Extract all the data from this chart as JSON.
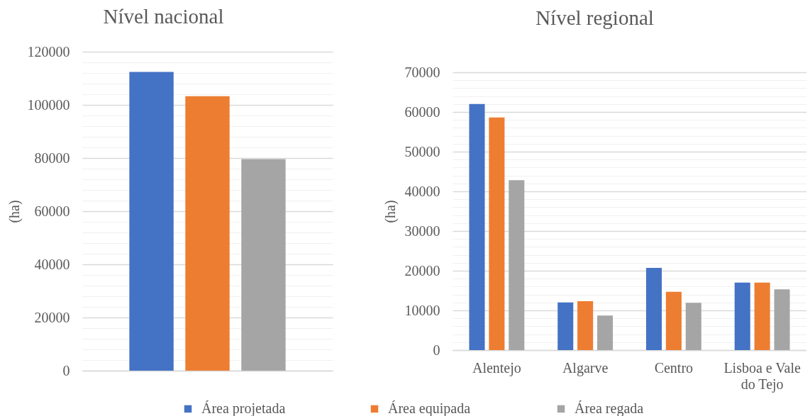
{
  "chart_data": [
    {
      "type": "bar",
      "title": "Nível nacional",
      "ylabel": "(ha)",
      "categories": [
        null
      ],
      "series": [
        {
          "name": "Área projetada",
          "color": "#4472c4",
          "values": [
            112400
          ]
        },
        {
          "name": "Área equipada",
          "color": "#ed7d31",
          "values": [
            103300
          ]
        },
        {
          "name": "Área regada",
          "color": "#a5a5a5",
          "values": [
            79600
          ]
        }
      ],
      "ylim": [
        0,
        120000
      ],
      "yticks": [
        0,
        {
          "value": 4000,
          "label": null
        },
        {
          "value": 8000,
          "label": null
        },
        {
          "value": 12000,
          "label": null
        },
        {
          "value": 16000,
          "label": null
        },
        20000,
        {
          "value": 24000,
          "label": null
        },
        {
          "value": 28000,
          "label": null
        },
        {
          "value": 32000,
          "label": null
        },
        {
          "value": 36000,
          "label": null
        },
        40000,
        {
          "value": 44000,
          "label": null
        },
        {
          "value": 48000,
          "label": null
        },
        {
          "value": 52000,
          "label": null
        },
        {
          "value": 56000,
          "label": null
        },
        60000,
        {
          "value": 64000,
          "label": null
        },
        {
          "value": 68000,
          "label": null
        },
        {
          "value": 72000,
          "label": null
        },
        {
          "value": 76000,
          "label": null
        },
        80000,
        {
          "value": 84000,
          "label": null
        },
        {
          "value": 88000,
          "label": null
        },
        {
          "value": 92000,
          "label": null
        },
        {
          "value": 96000,
          "label": null
        },
        100000,
        {
          "value": 104000,
          "label": null
        },
        {
          "value": 108000,
          "label": null
        },
        {
          "value": 112000,
          "label": null
        },
        {
          "value": 116000,
          "label": null
        },
        120000
      ],
      "grid": "y",
      "legend": "bottom"
    },
    {
      "type": "bar",
      "title": "Nível regional",
      "ylabel": "(ha)",
      "categories": [
        "Alentejo",
        "Algarve",
        "Centro",
        "Lisboa e Vale do Tejo"
      ],
      "series": [
        {
          "name": "Área projetada",
          "color": "#4472c4",
          "values": [
            62000,
            12000,
            20700,
            17000
          ]
        },
        {
          "name": "Área equipada",
          "color": "#ed7d31",
          "values": [
            58600,
            12300,
            14700,
            17000
          ]
        },
        {
          "name": "Área regada",
          "color": "#a5a5a5",
          "values": [
            42800,
            8700,
            11900,
            15300
          ]
        }
      ],
      "ylim": [
        0,
        70000
      ],
      "yticks": [
        0,
        {
          "value": 2000,
          "label": null
        },
        {
          "value": 4000,
          "label": null
        },
        {
          "value": 6000,
          "label": null
        },
        {
          "value": 8000,
          "label": null
        },
        10000,
        {
          "value": 12000,
          "label": null
        },
        {
          "value": 14000,
          "label": null
        },
        {
          "value": 16000,
          "label": null
        },
        {
          "value": 18000,
          "label": null
        },
        20000,
        {
          "value": 22000,
          "label": null
        },
        {
          "value": 24000,
          "label": null
        },
        {
          "value": 26000,
          "label": null
        },
        {
          "value": 28000,
          "label": null
        },
        30000,
        {
          "value": 32000,
          "label": null
        },
        {
          "value": 34000,
          "label": null
        },
        {
          "value": 36000,
          "label": null
        },
        {
          "value": 38000,
          "label": null
        },
        40000,
        {
          "value": 42000,
          "label": null
        },
        {
          "value": 44000,
          "label": null
        },
        {
          "value": 46000,
          "label": null
        },
        {
          "value": 48000,
          "label": null
        },
        50000,
        {
          "value": 52000,
          "label": null
        },
        {
          "value": 54000,
          "label": null
        },
        {
          "value": 56000,
          "label": null
        },
        {
          "value": 58000,
          "label": null
        },
        60000,
        {
          "value": 62000,
          "label": null
        },
        {
          "value": 64000,
          "label": null
        },
        {
          "value": 66000,
          "label": null
        },
        {
          "value": 68000,
          "label": null
        },
        70000
      ],
      "grid": "y",
      "legend": "bottom"
    }
  ]
}
